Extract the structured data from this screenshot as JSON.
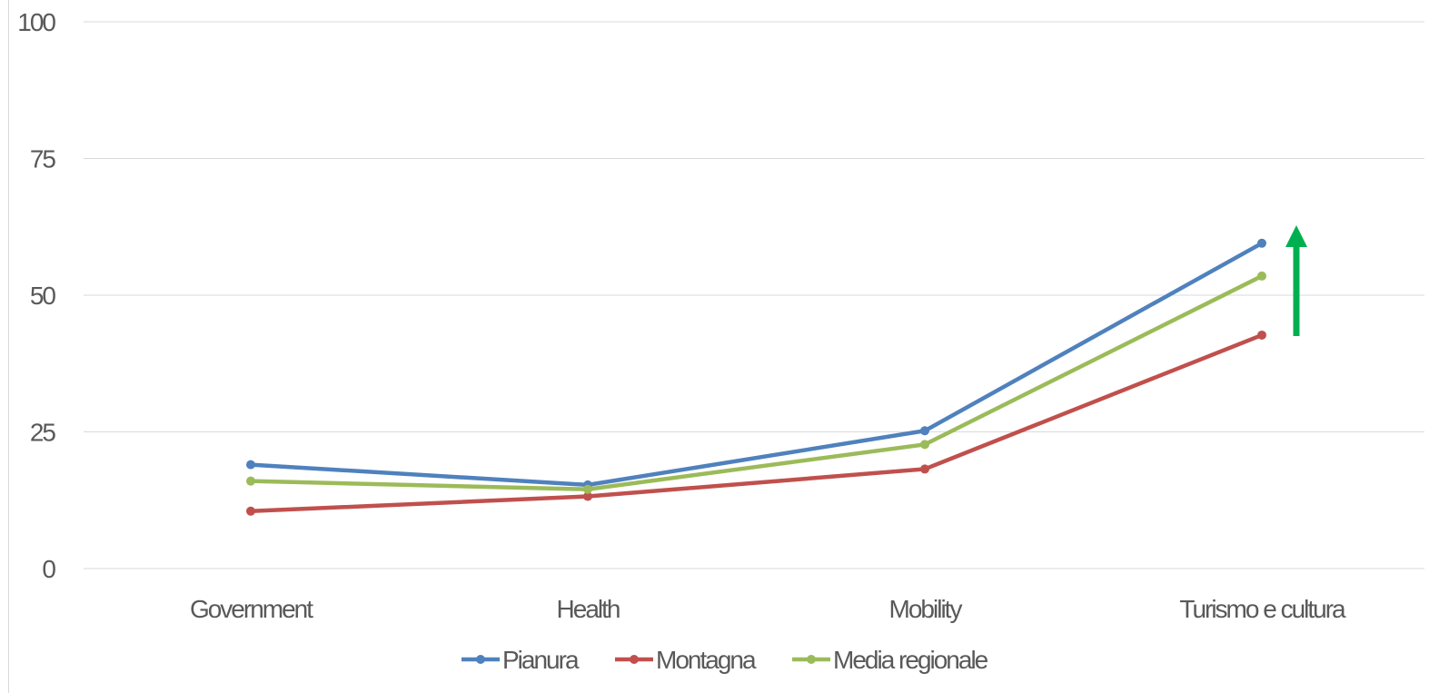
{
  "chart_data": {
    "type": "line",
    "categories": [
      "Government",
      "Health",
      "Mobility",
      "Turismo e cultura"
    ],
    "series": [
      {
        "name": "Pianura",
        "color": "#4F81BD",
        "values": [
          19,
          15.3,
          25.2,
          59.5
        ]
      },
      {
        "name": "Montagna",
        "color": "#C0504D",
        "values": [
          10.5,
          13.2,
          18.2,
          42.7
        ]
      },
      {
        "name": "Media regionale",
        "color": "#9BBB59",
        "values": [
          16,
          14.5,
          22.7,
          53.5
        ]
      }
    ],
    "ylim": [
      0,
      100
    ],
    "yticks": [
      0,
      25,
      50,
      75,
      100
    ],
    "ytick_labels": [
      "0",
      "25",
      "50",
      "75",
      "100"
    ],
    "grid": true,
    "legend_position": "bottom",
    "annotations": [
      {
        "type": "arrow",
        "direction": "up",
        "color": "#00B050"
      }
    ]
  }
}
